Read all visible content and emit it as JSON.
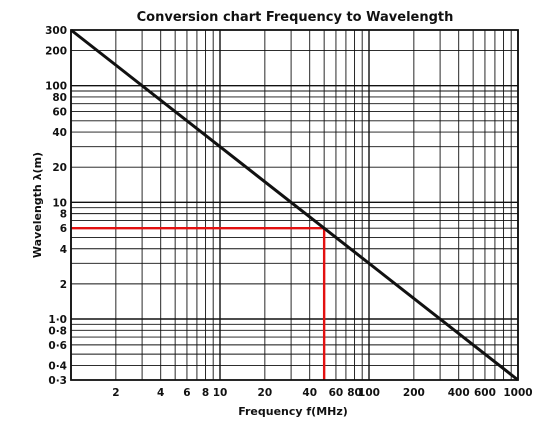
{
  "chart_data": {
    "type": "line",
    "title": "Conversion chart Frequency to Wavelength",
    "xlabel": "Frequency f(MHz)",
    "ylabel": "Wavelength λ(m)",
    "x_scale": "log",
    "y_scale": "log",
    "xlim": [
      1,
      1000
    ],
    "ylim": [
      0.3,
      300
    ],
    "x_ticks": [
      {
        "value": 2,
        "label": "2"
      },
      {
        "value": 4,
        "label": "4"
      },
      {
        "value": 6,
        "label": "6"
      },
      {
        "value": 8,
        "label": "8"
      },
      {
        "value": 10,
        "label": "10"
      },
      {
        "value": 20,
        "label": "20"
      },
      {
        "value": 40,
        "label": "40"
      },
      {
        "value": 60,
        "label": "60"
      },
      {
        "value": 80,
        "label": "80"
      },
      {
        "value": 100,
        "label": "100"
      },
      {
        "value": 200,
        "label": "200"
      },
      {
        "value": 400,
        "label": "400"
      },
      {
        "value": 600,
        "label": "600"
      },
      {
        "value": 1000,
        "label": "1000"
      }
    ],
    "y_ticks": [
      {
        "value": 300,
        "label": "300"
      },
      {
        "value": 200,
        "label": "200"
      },
      {
        "value": 100,
        "label": "100"
      },
      {
        "value": 80,
        "label": "80"
      },
      {
        "value": 60,
        "label": "60"
      },
      {
        "value": 40,
        "label": "40"
      },
      {
        "value": 20,
        "label": "20"
      },
      {
        "value": 10,
        "label": "10"
      },
      {
        "value": 8,
        "label": "8"
      },
      {
        "value": 6,
        "label": "6"
      },
      {
        "value": 4,
        "label": "4"
      },
      {
        "value": 2,
        "label": "2"
      },
      {
        "value": 1,
        "label": "1·0"
      },
      {
        "value": 0.8,
        "label": "0·8"
      },
      {
        "value": 0.6,
        "label": "0·6"
      },
      {
        "value": 0.4,
        "label": "0·4"
      },
      {
        "value": 0.3,
        "label": "0·3"
      }
    ],
    "x_grid": [
      1,
      2,
      3,
      4,
      5,
      6,
      7,
      8,
      9,
      10,
      20,
      30,
      40,
      50,
      60,
      70,
      80,
      90,
      100,
      200,
      300,
      400,
      500,
      600,
      700,
      800,
      900,
      1000
    ],
    "y_grid": [
      0.3,
      0.4,
      0.5,
      0.6,
      0.7,
      0.8,
      0.9,
      1,
      2,
      3,
      4,
      5,
      6,
      7,
      8,
      9,
      10,
      20,
      30,
      40,
      50,
      60,
      70,
      80,
      90,
      100,
      200,
      300
    ],
    "grid": true,
    "series": [
      {
        "points": [
          {
            "x": 1,
            "y": 300
          },
          {
            "x": 1000,
            "y": 0.3
          }
        ],
        "color": "#111111"
      }
    ],
    "annotation": {
      "x": 50,
      "y": 6,
      "color": "#e31010"
    }
  }
}
